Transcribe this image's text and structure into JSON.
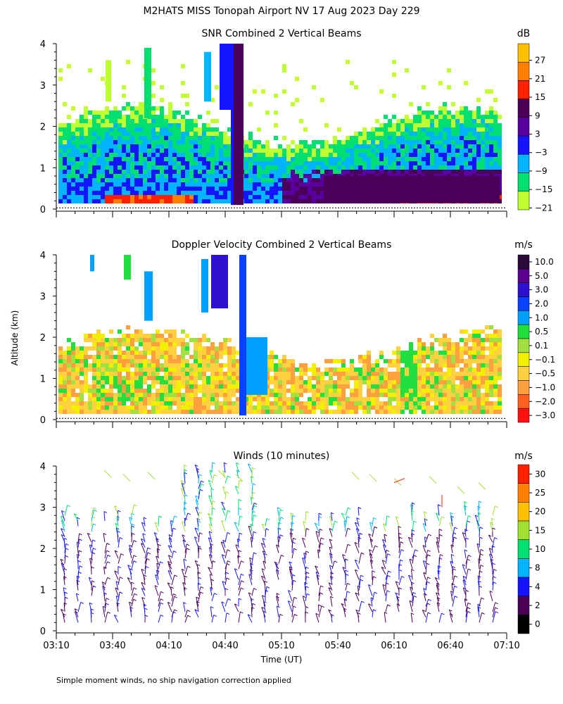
{
  "title": "M2HATS MISS Tonopah Airport NV  17 Aug 2023 Day 229",
  "ylabel": "Altitude (km)",
  "xlabel": "Time (UT)",
  "footnote": "Simple moment winds, no ship navigation correction applied",
  "chart_data": [
    {
      "type": "heatmap",
      "title": "SNR Combined 2 Vertical Beams",
      "units": "dB",
      "ylim": [
        0,
        4
      ],
      "yticks": [
        "0",
        "1",
        "2",
        "3",
        "4"
      ],
      "colorbar_labels": [
        "27",
        "21",
        "15",
        "9",
        "3",
        "−3",
        "−9",
        "−15",
        "−21"
      ],
      "colorbar_colors": [
        "#ffc000",
        "#ff8000",
        "#ff2000",
        "#4b005a",
        "#5a00a0",
        "#1414ff",
        "#00b4ff",
        "#00e070",
        "#c0ff30"
      ]
    },
    {
      "type": "heatmap",
      "title": "Doppler Velocity Combined 2 Vertical Beams",
      "units": "m/s",
      "ylim": [
        0,
        4
      ],
      "yticks": [
        "0",
        "1",
        "2",
        "3",
        "4"
      ],
      "colorbar_labels": [
        "10.0",
        "5.0",
        "3.0",
        "2.0",
        "1.0",
        "0.5",
        "0.1",
        "−0.1",
        "−0.5",
        "−1.0",
        "−2.0",
        "−3.0"
      ],
      "colorbar_colors": [
        "#2a0a3a",
        "#5a0090",
        "#3010d0",
        "#0a40ff",
        "#00a0ff",
        "#20e040",
        "#a0e040",
        "#f0f000",
        "#ffd040",
        "#ffa040",
        "#ff6020",
        "#ff1010"
      ]
    },
    {
      "type": "scatter",
      "title": "Winds (10 minutes)",
      "units": "m/s",
      "ylim": [
        0,
        4
      ],
      "yticks": [
        "0",
        "1",
        "2",
        "3",
        "4"
      ],
      "colorbar_labels": [
        "30",
        "25",
        "20",
        "15",
        "10",
        "8",
        "4",
        "2",
        "0"
      ],
      "colorbar_colors": [
        "#ff2000",
        "#ff8000",
        "#ffc000",
        "#a0e030",
        "#00e070",
        "#00b4ff",
        "#1414ff",
        "#4b005a",
        "#000000"
      ]
    }
  ],
  "x_ticks": [
    "03:10",
    "03:40",
    "04:10",
    "04:40",
    "05:10",
    "05:40",
    "06:10",
    "06:40",
    "07:10"
  ]
}
